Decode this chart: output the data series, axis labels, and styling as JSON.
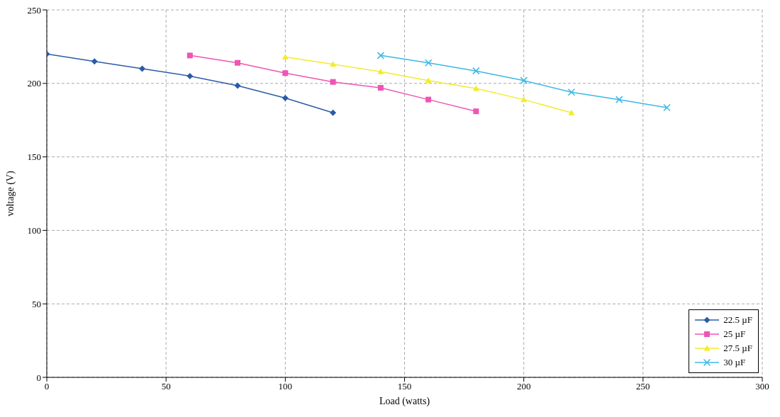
{
  "chart_data": {
    "type": "line",
    "xlabel": "Load (watts)",
    "ylabel": "voltage (V)",
    "xlim": [
      0,
      300
    ],
    "xticks": [
      0,
      50,
      100,
      150,
      200,
      250,
      300
    ],
    "ylim": [
      0,
      250
    ],
    "yticks": [
      0,
      50,
      100,
      150,
      200,
      250
    ],
    "grid": true,
    "legend": "bottom right",
    "line_style": "solid",
    "series": [
      {
        "name": "22.5 µF",
        "color": "#2b5ba8",
        "marker": "diamond",
        "x": [
          0,
          20,
          40,
          60,
          80,
          100,
          120
        ],
        "values": [
          220,
          215,
          210,
          205,
          198.5,
          190,
          180
        ]
      },
      {
        "name": "25 µF",
        "color": "#ee55b4",
        "marker": "square",
        "x": [
          60,
          80,
          100,
          120,
          140,
          160,
          180
        ],
        "values": [
          219,
          214,
          207,
          201,
          197,
          189,
          181
        ]
      },
      {
        "name": "27.5 µF",
        "color": "#f2ec2e",
        "marker": "triangle",
        "x": [
          100,
          120,
          140,
          160,
          180,
          200,
          220
        ],
        "values": [
          218,
          213,
          208,
          202,
          196.5,
          189,
          180
        ]
      },
      {
        "name": "30 µF",
        "color": "#3cb8e6",
        "marker": "cross",
        "x": [
          140,
          160,
          180,
          200,
          220,
          240,
          260
        ],
        "values": [
          219,
          214,
          208.5,
          202,
          194,
          189,
          183.5
        ]
      }
    ]
  }
}
